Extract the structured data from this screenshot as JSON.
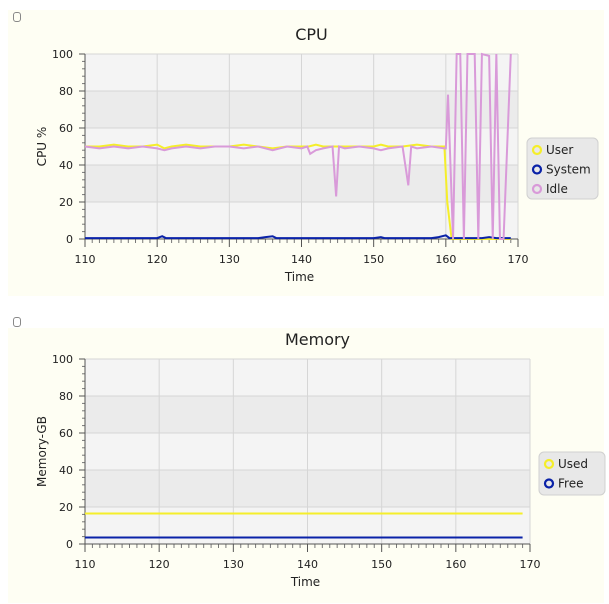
{
  "chart_data": [
    {
      "type": "line",
      "title": "CPU",
      "xlabel": "Time",
      "ylabel": "CPU %",
      "xlim": [
        110,
        170
      ],
      "ylim": [
        0,
        100
      ],
      "xticks": [
        110,
        120,
        130,
        140,
        150,
        160,
        170
      ],
      "yticks": [
        0,
        20,
        40,
        60,
        80,
        100
      ],
      "legend": "right",
      "grid": true,
      "series": [
        {
          "name": "User",
          "color": "#f5ee2a",
          "x": [
            110,
            112,
            114,
            116,
            118,
            120,
            121,
            122,
            124,
            126,
            128,
            130,
            132,
            134,
            136,
            138,
            140,
            141,
            142,
            143,
            144,
            146,
            148,
            150,
            151,
            152,
            154,
            156,
            158,
            159.8,
            160.2,
            160.8,
            162,
            164,
            166,
            168,
            169
          ],
          "y": [
            50,
            50,
            51,
            50,
            50,
            51,
            49,
            50,
            51,
            50,
            50,
            50,
            51,
            50,
            49,
            50,
            50,
            50,
            51,
            50,
            50,
            50,
            50,
            50,
            51,
            50,
            50,
            51,
            50,
            50,
            20,
            0,
            0,
            0,
            0,
            0,
            0
          ]
        },
        {
          "name": "System",
          "color": "#0a22a8",
          "x": [
            110,
            120,
            120.7,
            121.2,
            130,
            134,
            135,
            136,
            136.5,
            140,
            150,
            151,
            151.5,
            158,
            159,
            160,
            160.5,
            161,
            165,
            166,
            167,
            169
          ],
          "y": [
            0.5,
            0.5,
            1.5,
            0.5,
            0.5,
            0.5,
            1,
            1.5,
            0.5,
            0.5,
            0.5,
            1,
            0.5,
            0.5,
            1,
            2,
            0.5,
            0.5,
            0.5,
            1,
            0.5,
            0.5
          ]
        },
        {
          "name": "Idle",
          "color": "#d99ad9",
          "x": [
            110,
            112,
            114,
            116,
            118,
            120,
            121,
            122,
            124,
            126,
            128,
            130,
            132,
            134,
            136,
            138,
            140,
            140.8,
            141.2,
            142,
            143,
            144.3,
            144.8,
            145.2,
            146,
            148,
            150,
            151,
            152,
            154,
            154.8,
            155.2,
            156,
            158,
            159.8,
            160,
            160.3,
            161,
            161.5,
            162,
            162.5,
            163,
            164,
            164.5,
            165,
            166,
            166.5,
            167,
            167.5,
            168,
            169
          ],
          "y": [
            50,
            49,
            50,
            49,
            50,
            49,
            48,
            49,
            50,
            49,
            50,
            50,
            49,
            50,
            48,
            50,
            49,
            50,
            46,
            48,
            49,
            50,
            23,
            50,
            49,
            50,
            49,
            48,
            49,
            50,
            29,
            50,
            49,
            50,
            49,
            49,
            78,
            0,
            100,
            100,
            0,
            100,
            100,
            0,
            100,
            99,
            0,
            100,
            0,
            0,
            100
          ]
        }
      ]
    },
    {
      "type": "line",
      "title": "Memory",
      "xlabel": "Time",
      "ylabel": "Memory-GB",
      "xlim": [
        110,
        170
      ],
      "ylim": [
        0,
        100
      ],
      "xticks": [
        110,
        120,
        130,
        140,
        150,
        160,
        170
      ],
      "yticks": [
        0,
        20,
        40,
        60,
        80,
        100
      ],
      "legend": "right",
      "grid": true,
      "series": [
        {
          "name": "Used",
          "color": "#f5ee2a",
          "x": [
            110,
            169
          ],
          "y": [
            16.5,
            16.5
          ]
        },
        {
          "name": "Free",
          "color": "#0a22a8",
          "x": [
            110,
            169
          ],
          "y": [
            3.5,
            3.5
          ]
        }
      ]
    }
  ]
}
